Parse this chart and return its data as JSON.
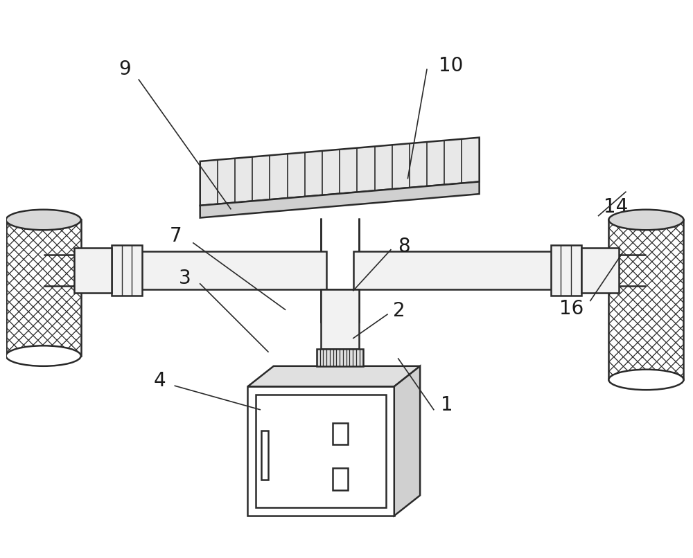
{
  "bg_color": "#ffffff",
  "line_color": "#2a2a2a",
  "lw": 1.8,
  "fig_width": 10.0,
  "fig_height": 8.06,
  "label_fontsize": 20
}
